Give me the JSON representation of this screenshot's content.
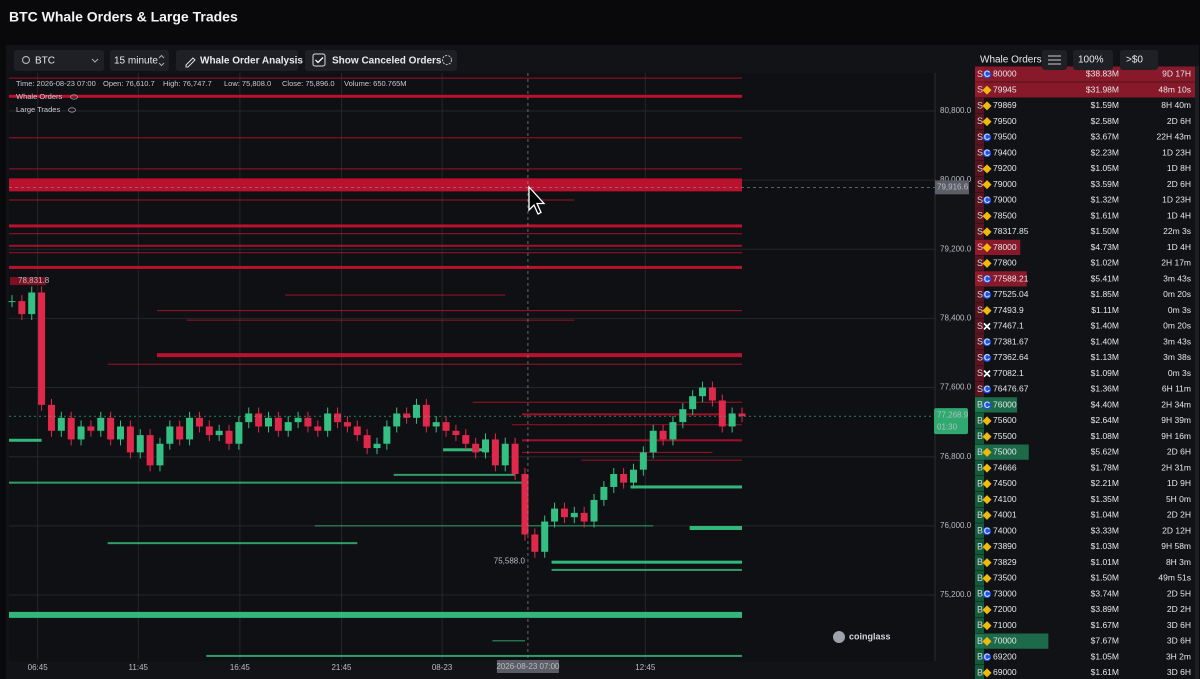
{
  "header": {
    "title": "BTC Whale Orders & Large Trades"
  },
  "toolbar": {
    "symbol": "BTC",
    "interval": "15 minute",
    "analysis_button": "Whale Order Analysis",
    "canceled_checkbox": "Show Canceled Orders",
    "book_label": "Whale Orders",
    "zoom": "100%",
    "min_size": ">$0"
  },
  "chart_data": {
    "type": "candlestick",
    "info": [
      "Time: 2026-08-23 07:00",
      "Open: 76,610.7",
      "High: 76,747.7",
      "Low: 75,808.0",
      "Close: 75,896.0",
      "Volume: 650.765M"
    ],
    "legend": [
      "Whale Orders",
      "Large Trades"
    ],
    "up_color": "#35c083",
    "down_color": "#e0294a",
    "closes": [
      78600,
      78450,
      78700,
      77400,
      77100,
      77250,
      77000,
      77150,
      77100,
      77250,
      77000,
      77150,
      76850,
      77050,
      76700,
      76950,
      77150,
      77000,
      77250,
      77150,
      77050,
      77100,
      76950,
      77200,
      77300,
      77150,
      77250,
      77100,
      77200,
      77250,
      77150,
      77100,
      77300,
      77200,
      77150,
      77050,
      76900,
      76950,
      77150,
      77300,
      77250,
      77400,
      77150,
      77200,
      77100,
      77050,
      76950,
      76850,
      77000,
      76700,
      76950,
      76600,
      75900,
      75700,
      76050,
      76200,
      76100,
      76150,
      76050,
      76300,
      76450,
      76600,
      76500,
      76650,
      76850,
      77100,
      77000,
      77200,
      77350,
      77500,
      77600,
      77450,
      77150,
      77300,
      77269
    ],
    "xlim": [
      0,
      74
    ],
    "ylim": [
      74448,
      81274
    ],
    "yticks": [
      {
        "value": 80800,
        "label": "80,800.0"
      },
      {
        "value": 80000,
        "label": "80,000.0"
      },
      {
        "value": 79200,
        "label": "79,200.0"
      },
      {
        "value": 78400,
        "label": "78,400.0"
      },
      {
        "value": 77600,
        "label": "77,600.0"
      },
      {
        "value": 76800,
        "label": "76,800.0"
      },
      {
        "value": 76000,
        "label": "76,000.0"
      },
      {
        "value": 75200,
        "label": "75,200.0"
      }
    ],
    "xticks": [
      {
        "value": 2.6,
        "label": "06:45"
      },
      {
        "value": 12.8,
        "label": "11:45"
      },
      {
        "value": 23.1,
        "label": "16:45"
      },
      {
        "value": 33.4,
        "label": "21:45"
      },
      {
        "value": 43.6,
        "label": "08-23"
      },
      {
        "value": 64.2,
        "label": "12:45"
      }
    ],
    "crosshair": {
      "x": 52.3,
      "x_label": "2026-08-23 07:00",
      "price": 79916.6,
      "price_label": "79,916.6"
    },
    "last": {
      "price": 77268.9,
      "price_label": "77,268.9",
      "countdown": "01:30"
    },
    "low_marker": {
      "x": 52.3,
      "price": 75588,
      "label": "75,588.0"
    },
    "high_marker": {
      "price": 78831.8,
      "label": "78,831.8"
    },
    "levels": [
      {
        "side": "ask",
        "price": 81180,
        "from": 0,
        "to": 74,
        "weight": 1
      },
      {
        "side": "ask",
        "price": 80970,
        "from": 0,
        "to": 74,
        "weight": 3
      },
      {
        "side": "ask",
        "price": 80490,
        "from": 0,
        "to": 74,
        "weight": 1
      },
      {
        "side": "ask",
        "price": 80130,
        "from": 0,
        "to": 74,
        "weight": 1
      },
      {
        "side": "ask",
        "price": 79945,
        "from": 0,
        "to": 74,
        "weight": 13
      },
      {
        "side": "ask",
        "price": 79770,
        "from": 0,
        "to": 57,
        "weight": 1
      },
      {
        "side": "ask",
        "price": 79470,
        "from": 0,
        "to": 74,
        "weight": 3
      },
      {
        "side": "ask",
        "price": 79380,
        "from": 0,
        "to": 74,
        "weight": 1
      },
      {
        "side": "ask",
        "price": 79240,
        "from": 0,
        "to": 74,
        "weight": 2
      },
      {
        "side": "ask",
        "price": 79160,
        "from": 0,
        "to": 74,
        "weight": 1
      },
      {
        "side": "ask",
        "price": 78990,
        "from": 0,
        "to": 74,
        "weight": 3
      },
      {
        "side": "ask",
        "price": 78670,
        "from": 28,
        "to": 50,
        "weight": 1
      },
      {
        "side": "ask",
        "price": 78490,
        "from": 15,
        "to": 74,
        "weight": 1
      },
      {
        "side": "ask",
        "price": 78380,
        "from": 18,
        "to": 57,
        "weight": 1
      },
      {
        "side": "ask",
        "price": 77975,
        "from": 15,
        "to": 74,
        "weight": 4
      },
      {
        "side": "ask",
        "price": 77870,
        "from": 10,
        "to": 74,
        "weight": 1
      },
      {
        "side": "ask",
        "price": 77430,
        "from": 47,
        "to": 74,
        "weight": 1
      },
      {
        "side": "ask",
        "price": 77290,
        "from": 52,
        "to": 72,
        "weight": 2
      },
      {
        "side": "ask",
        "price": 77170,
        "from": 51,
        "to": 74,
        "weight": 1
      },
      {
        "side": "ask",
        "price": 76990,
        "from": 52,
        "to": 74,
        "weight": 2
      },
      {
        "side": "ask",
        "price": 76850,
        "from": 52,
        "to": 71,
        "weight": 1
      },
      {
        "side": "ask",
        "price": 76760,
        "from": 58,
        "to": 74,
        "weight": 1
      },
      {
        "side": "bid",
        "price": 76990,
        "from": 0,
        "to": 3,
        "weight": 3
      },
      {
        "side": "bid",
        "price": 76880,
        "from": 44,
        "to": 48,
        "weight": 3
      },
      {
        "side": "bid",
        "price": 76590,
        "from": 39,
        "to": 51,
        "weight": 2
      },
      {
        "side": "bid",
        "price": 76500,
        "from": 0,
        "to": 52,
        "weight": 2
      },
      {
        "side": "bid",
        "price": 76450,
        "from": 63,
        "to": 74,
        "weight": 3
      },
      {
        "side": "bid",
        "price": 76000,
        "from": 31,
        "to": 65,
        "weight": 1
      },
      {
        "side": "bid",
        "price": 75975,
        "from": 69,
        "to": 74,
        "weight": 4
      },
      {
        "side": "bid",
        "price": 75800,
        "from": 10,
        "to": 35,
        "weight": 2
      },
      {
        "side": "bid",
        "price": 75580,
        "from": 55,
        "to": 74,
        "weight": 3
      },
      {
        "side": "bid",
        "price": 75490,
        "from": 55,
        "to": 74,
        "weight": 2
      },
      {
        "side": "bid",
        "price": 74970,
        "from": 0,
        "to": 74,
        "weight": 6
      },
      {
        "side": "bid",
        "price": 74670,
        "from": 49,
        "to": 52,
        "weight": 1
      },
      {
        "side": "bid",
        "price": 74495,
        "from": 20,
        "to": 74,
        "weight": 2
      }
    ],
    "watermark": "coinglass"
  },
  "order_book": {
    "rows": [
      {
        "side": "S",
        "ex": "C",
        "price": 80000,
        "amount": 38.83,
        "amount_label": "$38.83M",
        "age": "9D 17H"
      },
      {
        "side": "S",
        "ex": "B",
        "price": 79945,
        "amount": 31.98,
        "amount_label": "$31.98M",
        "age": "48m 10s"
      },
      {
        "side": "S",
        "ex": "B",
        "price": 79869,
        "amount": 1.59,
        "amount_label": "$1.59M",
        "age": "8H 40m"
      },
      {
        "side": "S",
        "ex": "B",
        "price": 79500,
        "amount": 2.58,
        "amount_label": "$2.58M",
        "age": "2D 6H"
      },
      {
        "side": "S",
        "ex": "C",
        "price": 79500,
        "amount": 3.67,
        "amount_label": "$3.67M",
        "age": "22H 43m"
      },
      {
        "side": "S",
        "ex": "C",
        "price": 79400,
        "amount": 2.23,
        "amount_label": "$2.23M",
        "age": "1D 23H"
      },
      {
        "side": "S",
        "ex": "B",
        "price": 79200,
        "amount": 1.05,
        "amount_label": "$1.05M",
        "age": "1D 8H"
      },
      {
        "side": "S",
        "ex": "B",
        "price": 79000,
        "amount": 3.59,
        "amount_label": "$3.59M",
        "age": "2D 6H"
      },
      {
        "side": "S",
        "ex": "C",
        "price": 79000,
        "amount": 1.32,
        "amount_label": "$1.32M",
        "age": "1D 23H"
      },
      {
        "side": "S",
        "ex": "B",
        "price": 78500,
        "amount": 1.61,
        "amount_label": "$1.61M",
        "age": "1D 4H"
      },
      {
        "side": "S",
        "ex": "B",
        "price": 78317.85,
        "amount": 1.5,
        "amount_label": "$1.50M",
        "age": "22m 3s"
      },
      {
        "side": "S",
        "ex": "B",
        "price": 78000,
        "amount": 4.73,
        "amount_label": "$4.73M",
        "age": "1D 4H"
      },
      {
        "side": "S",
        "ex": "B",
        "price": 77800,
        "amount": 1.02,
        "amount_label": "$1.02M",
        "age": "2H 17m"
      },
      {
        "side": "S",
        "ex": "C",
        "price": 77588.21,
        "amount": 5.41,
        "amount_label": "$5.41M",
        "age": "3m 43s"
      },
      {
        "side": "S",
        "ex": "C",
        "price": 77525.04,
        "amount": 1.85,
        "amount_label": "$1.85M",
        "age": "0m 20s"
      },
      {
        "side": "S",
        "ex": "B",
        "price": 77493.9,
        "amount": 1.11,
        "amount_label": "$1.11M",
        "age": "0m 3s"
      },
      {
        "side": "S",
        "ex": "X",
        "price": 77467.1,
        "amount": 1.4,
        "amount_label": "$1.40M",
        "age": "0m 20s"
      },
      {
        "side": "S",
        "ex": "C",
        "price": 77381.67,
        "amount": 1.4,
        "amount_label": "$1.40M",
        "age": "3m 43s"
      },
      {
        "side": "S",
        "ex": "C",
        "price": 77362.64,
        "amount": 1.13,
        "amount_label": "$1.13M",
        "age": "3m 38s"
      },
      {
        "side": "S",
        "ex": "X",
        "price": 77082.1,
        "amount": 1.09,
        "amount_label": "$1.09M",
        "age": "0m 3s"
      },
      {
        "side": "S",
        "ex": "C",
        "price": 76476.67,
        "amount": 1.36,
        "amount_label": "$1.36M",
        "age": "6H 11m"
      },
      {
        "side": "B",
        "ex": "C",
        "price": 76000,
        "amount": 4.4,
        "amount_label": "$4.40M",
        "age": "2H 34m"
      },
      {
        "side": "B",
        "ex": "B",
        "price": 75600,
        "amount": 2.64,
        "amount_label": "$2.64M",
        "age": "9H 39m"
      },
      {
        "side": "B",
        "ex": "B",
        "price": 75500,
        "amount": 1.08,
        "amount_label": "$1.08M",
        "age": "9H 16m"
      },
      {
        "side": "B",
        "ex": "B",
        "price": 75000,
        "amount": 5.62,
        "amount_label": "$5.62M",
        "age": "2D 6H"
      },
      {
        "side": "B",
        "ex": "B",
        "price": 74666,
        "amount": 1.78,
        "amount_label": "$1.78M",
        "age": "2H 31m"
      },
      {
        "side": "B",
        "ex": "B",
        "price": 74500,
        "amount": 2.21,
        "amount_label": "$2.21M",
        "age": "1D 9H"
      },
      {
        "side": "B",
        "ex": "B",
        "price": 74100,
        "amount": 1.35,
        "amount_label": "$1.35M",
        "age": "5H 0m"
      },
      {
        "side": "B",
        "ex": "B",
        "price": 74001,
        "amount": 1.04,
        "amount_label": "$1.04M",
        "age": "2D 2H"
      },
      {
        "side": "B",
        "ex": "C",
        "price": 74000,
        "amount": 3.33,
        "amount_label": "$3.33M",
        "age": "2D 12H"
      },
      {
        "side": "B",
        "ex": "B",
        "price": 73890,
        "amount": 1.03,
        "amount_label": "$1.03M",
        "age": "9H 58m"
      },
      {
        "side": "B",
        "ex": "B",
        "price": 73829,
        "amount": 1.01,
        "amount_label": "$1.01M",
        "age": "8H 3m"
      },
      {
        "side": "B",
        "ex": "B",
        "price": 73500,
        "amount": 1.5,
        "amount_label": "$1.50M",
        "age": "49m 51s"
      },
      {
        "side": "B",
        "ex": "C",
        "price": 73000,
        "amount": 3.74,
        "amount_label": "$3.74M",
        "age": "2D 5H"
      },
      {
        "side": "B",
        "ex": "B",
        "price": 72000,
        "amount": 3.89,
        "amount_label": "$3.89M",
        "age": "2D 2H"
      },
      {
        "side": "B",
        "ex": "B",
        "price": 71000,
        "amount": 1.67,
        "amount_label": "$1.67M",
        "age": "3D 6H"
      },
      {
        "side": "B",
        "ex": "B",
        "price": 70000,
        "amount": 7.67,
        "amount_label": "$7.67M",
        "age": "3D 6H"
      },
      {
        "side": "B",
        "ex": "C",
        "price": 69200,
        "amount": 1.05,
        "amount_label": "$1.05M",
        "age": "3H 2m"
      },
      {
        "side": "B",
        "ex": "B",
        "price": 69000,
        "amount": 1.61,
        "amount_label": "$1.61M",
        "age": "3D 6H"
      }
    ]
  }
}
